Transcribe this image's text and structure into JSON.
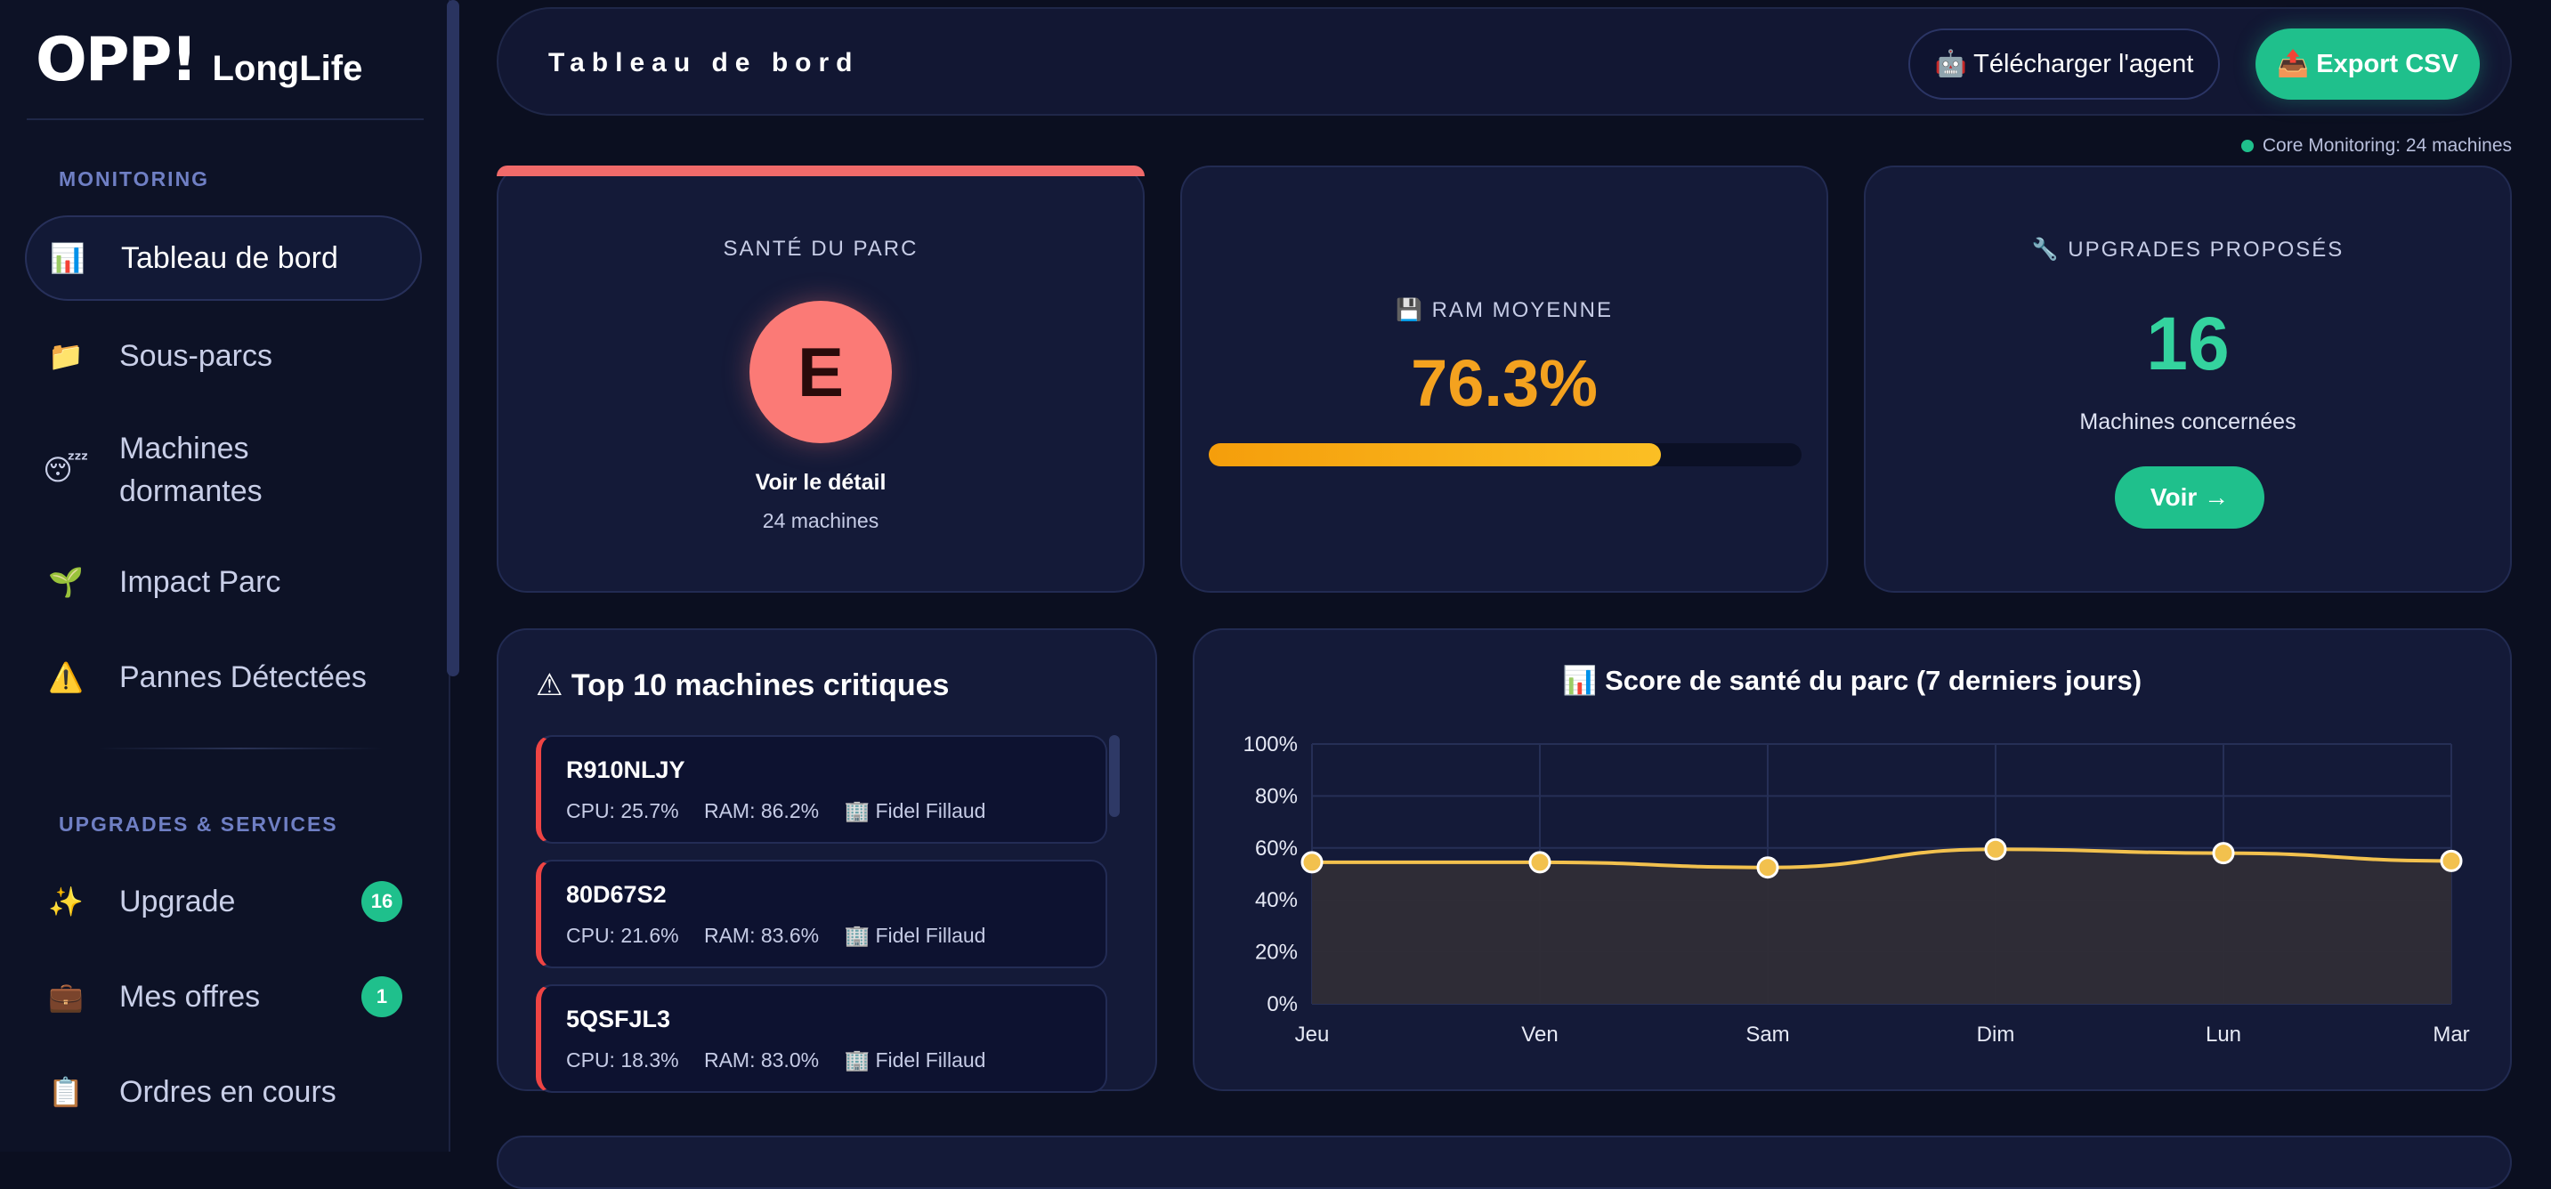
{
  "brand": {
    "logo": "OPP!",
    "product": "LongLife"
  },
  "sidebar": {
    "section_monitoring": "MONITORING",
    "section_upgrades": "UPGRADES & SERVICES",
    "items": [
      {
        "icon": "📊",
        "label": "Tableau de bord"
      },
      {
        "icon": "📁",
        "label": "Sous-parcs"
      },
      {
        "icon": "😴",
        "label": "Machines dormantes"
      },
      {
        "icon": "🌱",
        "label": "Impact Parc"
      },
      {
        "icon": "⚠️",
        "label": "Pannes Détectées"
      },
      {
        "icon": "✨",
        "label": "Upgrade",
        "badge": "16"
      },
      {
        "icon": "💼",
        "label": "Mes offres",
        "badge": "1"
      },
      {
        "icon": "📋",
        "label": "Ordres en cours"
      }
    ]
  },
  "header": {
    "title": "Tableau de bord",
    "agent_button": "🤖 Télécharger l'agent",
    "export_button": "📤 Export CSV"
  },
  "status": {
    "text": "Core Monitoring: 24 machines",
    "color": "#1fc08c"
  },
  "health": {
    "title": "SANTÉ DU PARC",
    "grade": "E",
    "link": "Voir le détail",
    "sub": "24 machines"
  },
  "ram": {
    "title": "💾 RAM MOYENNE",
    "value": "76.3%",
    "fraction": 0.763
  },
  "upgrades": {
    "title": "🔧 UPGRADES PROPOSÉS",
    "count": "16",
    "sub": "Machines concernées",
    "button": "Voir →"
  },
  "critical": {
    "title": "⚠ Top 10 machines critiques",
    "machines": [
      {
        "name": "R910NLJY",
        "cpu": "CPU: 25.7%",
        "ram": "RAM: 86.2%",
        "owner": "🏢 Fidel Fillaud"
      },
      {
        "name": "80D67S2",
        "cpu": "CPU: 21.6%",
        "ram": "RAM: 83.6%",
        "owner": "🏢 Fidel Fillaud"
      },
      {
        "name": "5QSFJL3",
        "cpu": "CPU: 18.3%",
        "ram": "RAM: 83.0%",
        "owner": "🏢 Fidel Fillaud"
      }
    ]
  },
  "chart_data": {
    "type": "area",
    "title": "📊 Score de santé du parc (7 derniers jours)",
    "categories": [
      "Jeu",
      "Ven",
      "Sam",
      "Dim",
      "Lun",
      "Mar"
    ],
    "series": [
      {
        "name": "Score de santé",
        "values": [
          54.5,
          54.5,
          52.5,
          59.5,
          58,
          55
        ],
        "color": "#f2c14e"
      }
    ],
    "ylim": [
      0,
      100
    ],
    "yticks": [
      "0%",
      "20%",
      "40%",
      "60%",
      "80%",
      "100%"
    ],
    "grid": true
  }
}
